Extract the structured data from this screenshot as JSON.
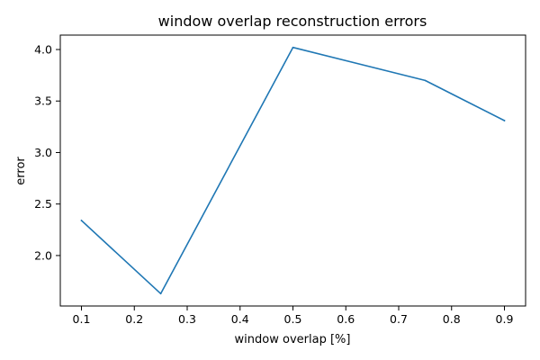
{
  "chart_data": {
    "type": "line",
    "title": "window overlap reconstruction errors",
    "xlabel": "window overlap [%]",
    "ylabel": "error",
    "x": [
      0.1,
      0.25,
      0.5,
      0.75,
      0.9
    ],
    "series": [
      {
        "values": [
          2.34,
          1.63,
          4.02,
          3.7,
          3.31
        ],
        "color": "#1f77b4"
      }
    ],
    "xlim": [
      0.06,
      0.94
    ],
    "ylim": [
      1.51,
      4.14
    ],
    "xticks": [
      0.1,
      0.2,
      0.3,
      0.4,
      0.5,
      0.6,
      0.7,
      0.8,
      0.9
    ],
    "xtick_labels": [
      "0.1",
      "0.2",
      "0.3",
      "0.4",
      "0.5",
      "0.6",
      "0.7",
      "0.8",
      "0.9"
    ],
    "yticks": [
      2.0,
      2.5,
      3.0,
      3.5,
      4.0
    ],
    "ytick_labels": [
      "2.0",
      "2.5",
      "3.0",
      "3.5",
      "4.0"
    ],
    "grid": false,
    "legend": "none"
  }
}
